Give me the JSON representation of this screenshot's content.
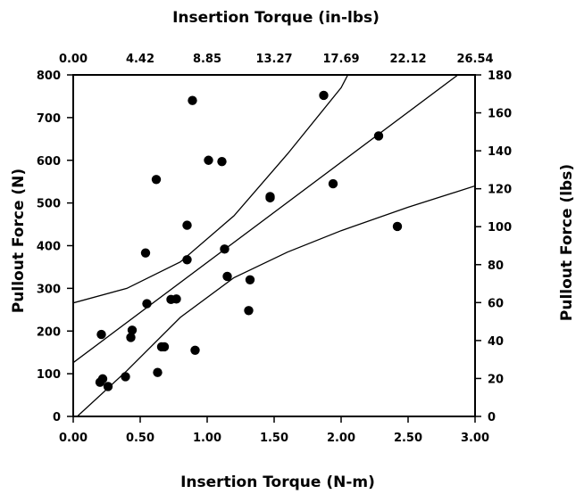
{
  "chart_data": {
    "type": "scatter",
    "title": "",
    "xlabel": "Insertion Torque (N-m)",
    "xlabel_top": "Insertion Torque (in-lbs)",
    "ylabel": "Pullout Force (N)",
    "ylabel_right": "Pullout Force (lbs)",
    "xlim": [
      0,
      3
    ],
    "ylim": [
      0,
      800
    ],
    "x_ticks": [
      "0.00",
      "0.50",
      "1.00",
      "1.50",
      "2.00",
      "2.50",
      "3.00"
    ],
    "x_top_ticks": [
      "0.00",
      "4.42",
      "8.85",
      "13.27",
      "17.69",
      "22.12",
      "26.54"
    ],
    "y_ticks": [
      "0",
      "100",
      "200",
      "300",
      "400",
      "500",
      "600",
      "700",
      "800"
    ],
    "y_right_ticks": [
      "0",
      "20",
      "40",
      "60",
      "80",
      "100",
      "120",
      "140",
      "160",
      "180"
    ],
    "grid": false,
    "points": [
      {
        "x": 0.2,
        "y": 80
      },
      {
        "x": 0.22,
        "y": 88
      },
      {
        "x": 0.21,
        "y": 192
      },
      {
        "x": 0.26,
        "y": 70
      },
      {
        "x": 0.39,
        "y": 93
      },
      {
        "x": 0.43,
        "y": 185
      },
      {
        "x": 0.44,
        "y": 202
      },
      {
        "x": 0.54,
        "y": 383
      },
      {
        "x": 0.55,
        "y": 264
      },
      {
        "x": 0.62,
        "y": 555
      },
      {
        "x": 0.63,
        "y": 103
      },
      {
        "x": 0.66,
        "y": 163
      },
      {
        "x": 0.68,
        "y": 163
      },
      {
        "x": 0.73,
        "y": 274
      },
      {
        "x": 0.77,
        "y": 275
      },
      {
        "x": 0.85,
        "y": 448
      },
      {
        "x": 0.85,
        "y": 367
      },
      {
        "x": 0.89,
        "y": 740
      },
      {
        "x": 0.91,
        "y": 155
      },
      {
        "x": 1.01,
        "y": 600
      },
      {
        "x": 1.11,
        "y": 597
      },
      {
        "x": 1.13,
        "y": 392
      },
      {
        "x": 1.15,
        "y": 328
      },
      {
        "x": 1.31,
        "y": 248
      },
      {
        "x": 1.32,
        "y": 320
      },
      {
        "x": 1.47,
        "y": 515
      },
      {
        "x": 1.47,
        "y": 512
      },
      {
        "x": 1.87,
        "y": 752
      },
      {
        "x": 1.94,
        "y": 545
      },
      {
        "x": 2.28,
        "y": 657
      },
      {
        "x": 2.42,
        "y": 445
      }
    ],
    "regression": {
      "fit": [
        [
          0,
          126
        ],
        [
          3,
          830
        ]
      ],
      "upper_ci": [
        [
          0,
          266
        ],
        [
          0.4,
          300
        ],
        [
          0.8,
          362
        ],
        [
          1.2,
          470
        ],
        [
          1.6,
          615
        ],
        [
          2.0,
          770
        ],
        [
          2.05,
          800
        ]
      ],
      "lower_ci": [
        [
          0.03,
          0
        ],
        [
          0.4,
          107
        ],
        [
          0.8,
          232
        ],
        [
          1.2,
          325
        ],
        [
          1.6,
          385
        ],
        [
          2.0,
          435
        ],
        [
          2.5,
          490
        ],
        [
          3.0,
          540
        ]
      ]
    }
  }
}
